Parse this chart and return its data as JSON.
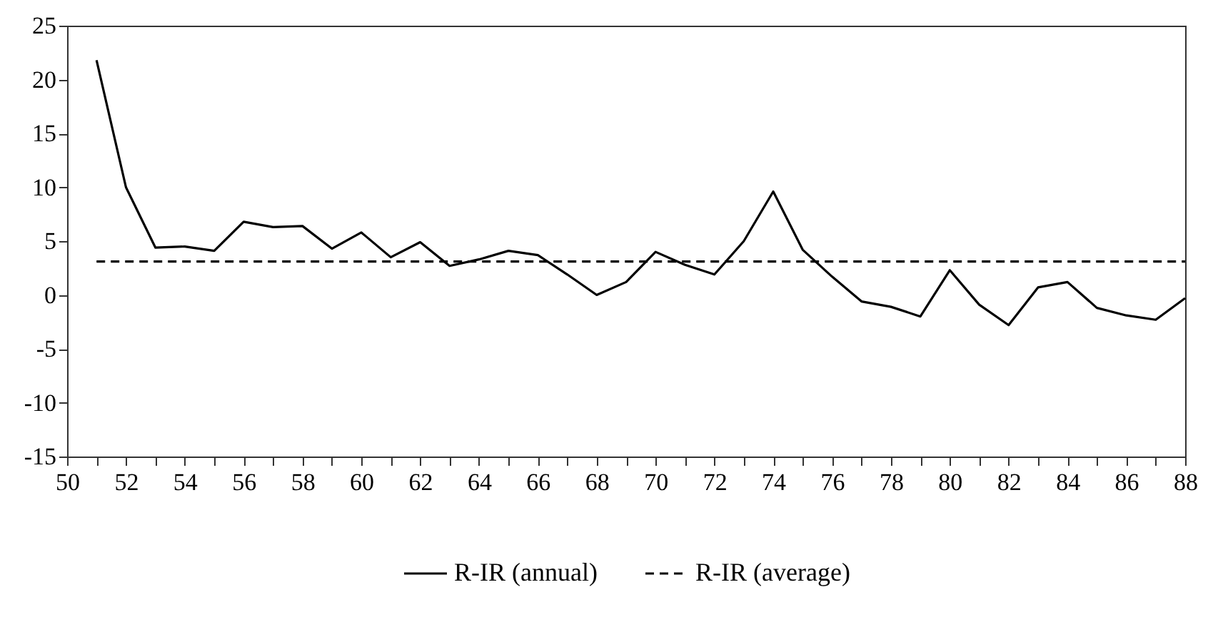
{
  "chart_data": {
    "type": "line",
    "x": [
      51,
      52,
      53,
      54,
      55,
      56,
      57,
      58,
      59,
      60,
      61,
      62,
      63,
      64,
      65,
      66,
      67,
      68,
      69,
      70,
      71,
      72,
      73,
      74,
      75,
      76,
      77,
      78,
      79,
      80,
      81,
      82,
      83,
      84,
      85,
      86,
      87,
      88
    ],
    "series": [
      {
        "name": "R-IR (annual)",
        "color": "#000000",
        "line_style": "solid",
        "values": [
          21.8,
          10.0,
          4.4,
          4.5,
          4.1,
          6.8,
          6.3,
          6.4,
          4.3,
          5.8,
          3.5,
          4.9,
          2.7,
          3.3,
          4.1,
          3.7,
          1.9,
          0,
          1.2,
          4.0,
          2.8,
          1.9,
          5.0,
          9.6,
          4.2,
          1.7,
          -0.6,
          -1.1,
          -2.0,
          2.3,
          -0.9,
          -2.8,
          0.7,
          1.2,
          -1.2,
          -1.9,
          -2.3,
          -0.3
        ]
      },
      {
        "name": "R-IR (average)",
        "color": "#000000",
        "line_style": "dashed",
        "x": [
          51,
          88
        ],
        "values": [
          3.1,
          3.1
        ]
      }
    ],
    "xlim": [
      50,
      88
    ],
    "xticks": [
      50,
      {
        "value": 51,
        "label": null
      },
      52,
      {
        "value": 53,
        "label": null
      },
      54,
      {
        "value": 55,
        "label": null
      },
      56,
      {
        "value": 57,
        "label": null
      },
      58,
      {
        "value": 59,
        "label": null
      },
      60,
      {
        "value": 61,
        "label": null
      },
      62,
      {
        "value": 63,
        "label": null
      },
      64,
      {
        "value": 65,
        "label": null
      },
      66,
      {
        "value": 67,
        "label": null
      },
      68,
      {
        "value": 69,
        "label": null
      },
      70,
      {
        "value": 71,
        "label": null
      },
      72,
      {
        "value": 73,
        "label": null
      },
      74,
      {
        "value": 75,
        "label": null
      },
      76,
      {
        "value": 77,
        "label": null
      },
      78,
      {
        "value": 79,
        "label": null
      },
      80,
      {
        "value": 81,
        "label": null
      },
      82,
      {
        "value": 83,
        "label": null
      },
      84,
      {
        "value": 85,
        "label": null
      },
      86,
      {
        "value": 87,
        "label": null
      },
      88
    ],
    "ylim": [
      -15,
      25
    ],
    "yticks": [
      -15,
      -10,
      -5,
      0,
      5,
      10,
      15,
      20,
      25
    ],
    "grid": false,
    "legend": "bottom",
    "marker": "none"
  }
}
